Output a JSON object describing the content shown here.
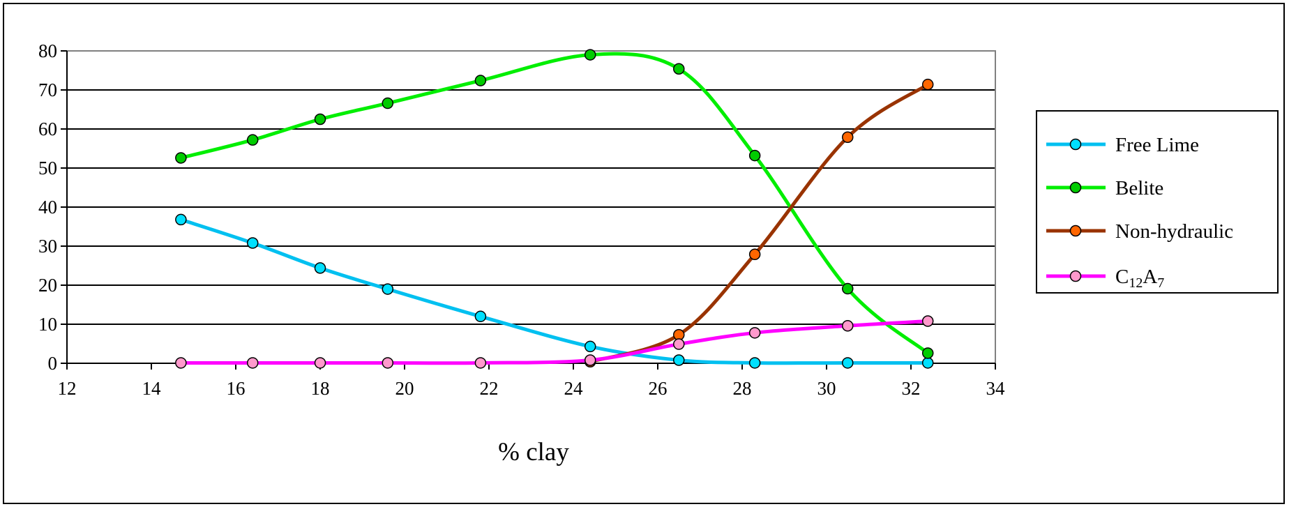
{
  "chart_data": {
    "type": "line",
    "xlabel": "% clay",
    "ylabel": "",
    "xlim": [
      12,
      34
    ],
    "ylim": [
      0,
      80
    ],
    "xticks": [
      12,
      14,
      16,
      18,
      20,
      22,
      24,
      26,
      28,
      30,
      32,
      34
    ],
    "yticks": [
      0,
      10,
      20,
      30,
      40,
      50,
      60,
      70,
      80
    ],
    "grid": "horizontal",
    "legend_position": "right",
    "series": [
      {
        "name": "Free Lime",
        "color": "#00c0f0",
        "marker_color": "#00e0ff",
        "x": [
          14.7,
          16.4,
          18.0,
          19.6,
          21.8,
          24.4,
          26.5,
          28.3,
          30.5,
          32.4
        ],
        "values": [
          36.8,
          30.8,
          24.4,
          19.0,
          12.0,
          4.3,
          0.8,
          0.1,
          0.1,
          0.1
        ]
      },
      {
        "name": "Belite",
        "color": "#00ee00",
        "marker_color": "#00cc00",
        "x": [
          14.7,
          16.4,
          18.0,
          19.6,
          21.8,
          24.4,
          26.5,
          28.3,
          30.5,
          32.4
        ],
        "values": [
          52.6,
          57.2,
          62.5,
          66.6,
          72.4,
          79.0,
          75.4,
          53.2,
          19.1,
          2.6
        ]
      },
      {
        "name": "Non-hydraulic",
        "color": "#993300",
        "marker_color": "#ff6600",
        "x": [
          24.4,
          26.5,
          28.3,
          30.5,
          32.4
        ],
        "values": [
          0.4,
          7.3,
          27.9,
          57.9,
          71.4
        ]
      },
      {
        "name_parts": [
          "C",
          "12",
          "A",
          "7"
        ],
        "color": "#ff00ff",
        "marker_color": "#ff99cc",
        "x": [
          14.7,
          16.4,
          18.0,
          19.6,
          21.8,
          24.4,
          26.5,
          28.3,
          30.5,
          32.4
        ],
        "values": [
          0.1,
          0.1,
          0.1,
          0.1,
          0.1,
          0.8,
          4.9,
          7.8,
          9.6,
          10.8
        ]
      }
    ]
  }
}
